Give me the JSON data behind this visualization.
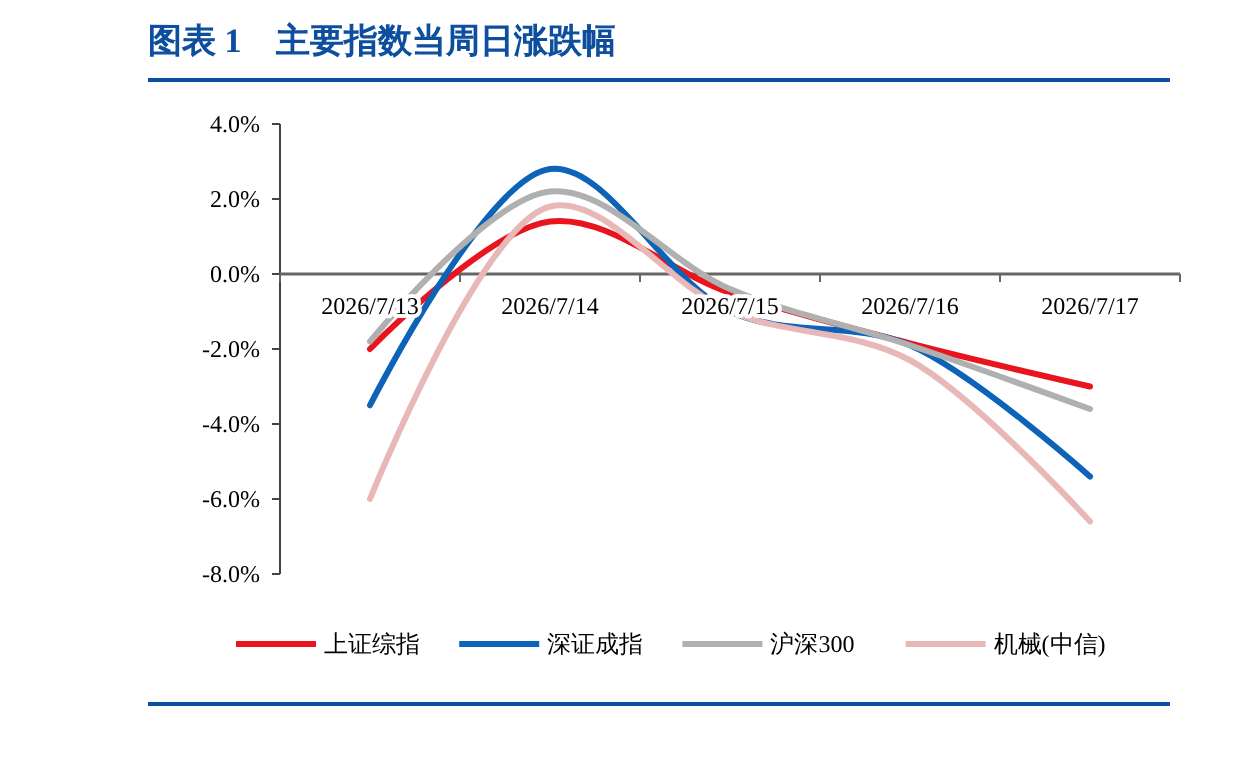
{
  "chart_data": {
    "type": "line",
    "title": "图表 1　主要指数当周日涨跌幅",
    "categories": [
      "2026/7/13",
      "2026/7/14",
      "2026/7/15",
      "2026/7/16",
      "2026/7/17"
    ],
    "series": [
      {
        "name": "上证综指",
        "color": "#e8141e",
        "values": [
          -2.0,
          1.4,
          -0.5,
          -1.85,
          -3.0
        ]
      },
      {
        "name": "深证成指",
        "color": "#0d63b8",
        "values": [
          -3.5,
          2.8,
          -1.0,
          -1.9,
          -5.4
        ]
      },
      {
        "name": "沪深300",
        "color": "#b0b0b0",
        "values": [
          -1.8,
          2.2,
          -0.4,
          -1.9,
          -3.6
        ]
      },
      {
        "name": "机械(中信)",
        "color": "#e8b8b8",
        "values": [
          -6.0,
          1.8,
          -1.0,
          -2.3,
          -6.6
        ]
      }
    ],
    "ylim": [
      -8,
      4
    ],
    "yticks": [
      {
        "value": -8,
        "label": "-8.0%"
      },
      {
        "value": -6,
        "label": "-6.0%"
      },
      {
        "value": -4,
        "label": "-4.0%"
      },
      {
        "value": -2,
        "label": "-2.0%"
      },
      {
        "value": 0,
        "label": "0.0%"
      },
      {
        "value": 2,
        "label": "2.0%"
      },
      {
        "value": 4,
        "label": "4.0%"
      }
    ],
    "grid": false,
    "legend": "bottom",
    "marker": "none",
    "line_style": "solid"
  }
}
